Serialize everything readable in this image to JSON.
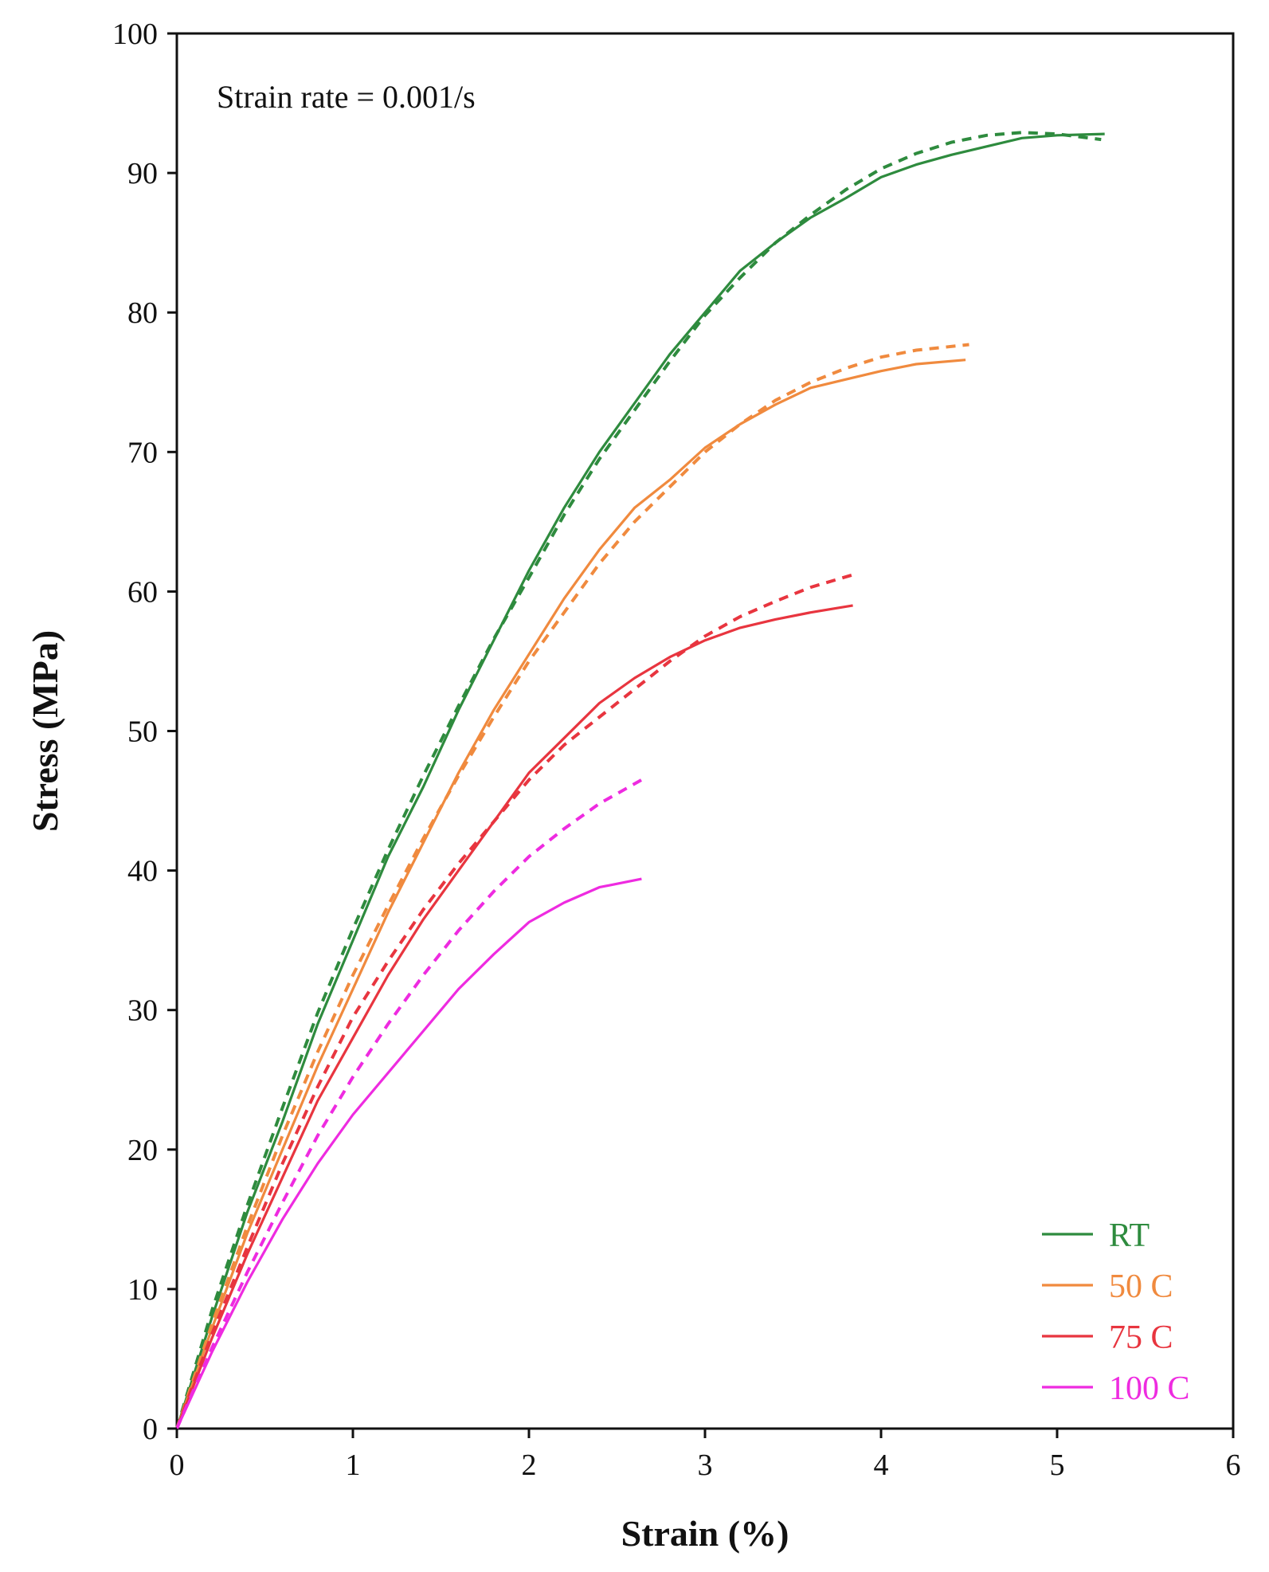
{
  "chart_data": {
    "type": "line",
    "title": "",
    "annotation": "Strain rate = 0.001/s",
    "xlabel": "Strain (%)",
    "ylabel": "Stress (MPa)",
    "xlim": [
      0,
      6
    ],
    "ylim": [
      0,
      100
    ],
    "xticks": [
      0,
      1,
      2,
      3,
      4,
      5,
      6
    ],
    "yticks": [
      0,
      10,
      20,
      30,
      40,
      50,
      60,
      70,
      80,
      90,
      100
    ],
    "grid": false,
    "legend_position": "bottom-right",
    "series": [
      {
        "name": "RT",
        "color": "#2e8b3e",
        "experimental": [
          [
            0,
            0
          ],
          [
            0.2,
            8
          ],
          [
            0.4,
            15.5
          ],
          [
            0.6,
            22
          ],
          [
            0.8,
            29
          ],
          [
            1.0,
            35
          ],
          [
            1.2,
            41
          ],
          [
            1.4,
            46
          ],
          [
            1.6,
            51.5
          ],
          [
            1.8,
            56.5
          ],
          [
            2.0,
            61.5
          ],
          [
            2.2,
            66
          ],
          [
            2.4,
            70
          ],
          [
            2.6,
            73.5
          ],
          [
            2.8,
            77
          ],
          [
            3.0,
            80
          ],
          [
            3.2,
            83
          ],
          [
            3.4,
            85
          ],
          [
            3.6,
            86.8
          ],
          [
            3.8,
            88.2
          ],
          [
            4.0,
            89.7
          ],
          [
            4.2,
            90.6
          ],
          [
            4.4,
            91.3
          ],
          [
            4.6,
            91.9
          ],
          [
            4.8,
            92.5
          ],
          [
            5.0,
            92.7
          ],
          [
            5.27,
            92.8
          ]
        ],
        "model": [
          [
            0,
            0
          ],
          [
            0.2,
            8.5
          ],
          [
            0.4,
            16
          ],
          [
            0.6,
            23
          ],
          [
            0.8,
            29.8
          ],
          [
            1.0,
            35.8
          ],
          [
            1.2,
            41.5
          ],
          [
            1.4,
            46.8
          ],
          [
            1.6,
            51.8
          ],
          [
            1.8,
            56.6
          ],
          [
            2.0,
            61
          ],
          [
            2.2,
            65.5
          ],
          [
            2.4,
            69.5
          ],
          [
            2.6,
            73
          ],
          [
            2.8,
            76.5
          ],
          [
            3.0,
            79.8
          ],
          [
            3.2,
            82.5
          ],
          [
            3.4,
            85
          ],
          [
            3.6,
            87
          ],
          [
            3.8,
            88.8
          ],
          [
            4.0,
            90.3
          ],
          [
            4.2,
            91.4
          ],
          [
            4.4,
            92.2
          ],
          [
            4.6,
            92.7
          ],
          [
            4.8,
            92.9
          ],
          [
            5.0,
            92.8
          ],
          [
            5.25,
            92.4
          ]
        ]
      },
      {
        "name": "50 C",
        "color": "#f08a3e",
        "experimental": [
          [
            0,
            0
          ],
          [
            0.2,
            7.2
          ],
          [
            0.4,
            14
          ],
          [
            0.6,
            20
          ],
          [
            0.8,
            26
          ],
          [
            1.0,
            31.5
          ],
          [
            1.2,
            37
          ],
          [
            1.4,
            42
          ],
          [
            1.6,
            47
          ],
          [
            1.8,
            51.5
          ],
          [
            2.0,
            55.5
          ],
          [
            2.2,
            59.5
          ],
          [
            2.4,
            63
          ],
          [
            2.6,
            66
          ],
          [
            2.8,
            68
          ],
          [
            3.0,
            70.3
          ],
          [
            3.2,
            72
          ],
          [
            3.4,
            73.4
          ],
          [
            3.6,
            74.6
          ],
          [
            3.8,
            75.2
          ],
          [
            4.0,
            75.8
          ],
          [
            4.2,
            76.3
          ],
          [
            4.48,
            76.6
          ]
        ],
        "model": [
          [
            0,
            0
          ],
          [
            0.2,
            7.5
          ],
          [
            0.4,
            14.5
          ],
          [
            0.6,
            21
          ],
          [
            0.8,
            27
          ],
          [
            1.0,
            32.5
          ],
          [
            1.2,
            37.5
          ],
          [
            1.4,
            42.3
          ],
          [
            1.6,
            46.8
          ],
          [
            1.8,
            51
          ],
          [
            2.0,
            55
          ],
          [
            2.2,
            58.5
          ],
          [
            2.4,
            62
          ],
          [
            2.6,
            65
          ],
          [
            2.8,
            67.5
          ],
          [
            3.0,
            70
          ],
          [
            3.2,
            72
          ],
          [
            3.4,
            73.7
          ],
          [
            3.6,
            75
          ],
          [
            3.8,
            76
          ],
          [
            4.0,
            76.8
          ],
          [
            4.2,
            77.3
          ],
          [
            4.5,
            77.7
          ]
        ]
      },
      {
        "name": "75 C",
        "color": "#e8353f",
        "experimental": [
          [
            0,
            0
          ],
          [
            0.2,
            6.5
          ],
          [
            0.4,
            12.5
          ],
          [
            0.6,
            18
          ],
          [
            0.8,
            23.5
          ],
          [
            1.0,
            28
          ],
          [
            1.2,
            32.5
          ],
          [
            1.4,
            36.5
          ],
          [
            1.6,
            40
          ],
          [
            1.8,
            43.5
          ],
          [
            2.0,
            47
          ],
          [
            2.2,
            49.5
          ],
          [
            2.4,
            52
          ],
          [
            2.6,
            53.8
          ],
          [
            2.8,
            55.3
          ],
          [
            3.0,
            56.5
          ],
          [
            3.2,
            57.4
          ],
          [
            3.4,
            58
          ],
          [
            3.6,
            58.5
          ],
          [
            3.84,
            59
          ]
        ],
        "model": [
          [
            0,
            0
          ],
          [
            0.2,
            6.8
          ],
          [
            0.4,
            13
          ],
          [
            0.6,
            19
          ],
          [
            0.8,
            24.5
          ],
          [
            1.0,
            29.5
          ],
          [
            1.2,
            33.5
          ],
          [
            1.4,
            37.2
          ],
          [
            1.6,
            40.5
          ],
          [
            1.8,
            43.5
          ],
          [
            2.0,
            46.5
          ],
          [
            2.2,
            49
          ],
          [
            2.4,
            51
          ],
          [
            2.6,
            53
          ],
          [
            2.8,
            55
          ],
          [
            3.0,
            56.8
          ],
          [
            3.2,
            58.2
          ],
          [
            3.4,
            59.3
          ],
          [
            3.6,
            60.3
          ],
          [
            3.84,
            61.2
          ]
        ]
      },
      {
        "name": "100 C",
        "color": "#ee2be0",
        "experimental": [
          [
            0,
            0
          ],
          [
            0.2,
            5.5
          ],
          [
            0.4,
            10.5
          ],
          [
            0.6,
            15
          ],
          [
            0.8,
            19
          ],
          [
            1.0,
            22.5
          ],
          [
            1.2,
            25.5
          ],
          [
            1.4,
            28.5
          ],
          [
            1.6,
            31.5
          ],
          [
            1.8,
            34
          ],
          [
            2.0,
            36.3
          ],
          [
            2.2,
            37.7
          ],
          [
            2.4,
            38.8
          ],
          [
            2.64,
            39.4
          ]
        ],
        "model": [
          [
            0,
            0
          ],
          [
            0.2,
            5.8
          ],
          [
            0.4,
            11.2
          ],
          [
            0.6,
            16.2
          ],
          [
            0.8,
            21
          ],
          [
            1.0,
            25.2
          ],
          [
            1.2,
            29
          ],
          [
            1.4,
            32.5
          ],
          [
            1.6,
            35.7
          ],
          [
            1.8,
            38.5
          ],
          [
            2.0,
            41
          ],
          [
            2.2,
            43
          ],
          [
            2.4,
            44.8
          ],
          [
            2.64,
            46.5
          ]
        ]
      }
    ]
  }
}
